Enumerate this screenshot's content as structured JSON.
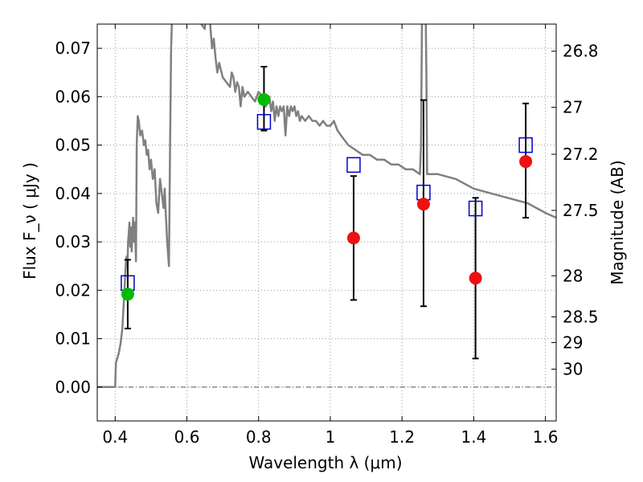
{
  "chart_data": {
    "type": "scatter",
    "xlabel": "Wavelength  λ (μm)",
    "ylabel": "Flux  F_ν  ( μJy )",
    "ylabel_right": "Magnitude (AB)",
    "xlim": [
      0.35,
      1.63
    ],
    "ylim": [
      -0.007,
      0.075
    ],
    "x_ticks": [
      0.4,
      0.6,
      0.8,
      1.0,
      1.2,
      1.4,
      1.6
    ],
    "x_tick_labels": [
      "0.4",
      "0.6",
      "0.8",
      "1",
      "1.2",
      "1.4",
      "1.6"
    ],
    "y_ticks": [
      0.0,
      0.01,
      0.02,
      0.03,
      0.04,
      0.05,
      0.06,
      0.07
    ],
    "y_tick_labels": [
      "0.00",
      "0.01",
      "0.02",
      "0.03",
      "0.04",
      "0.05",
      "0.06",
      "0.07"
    ],
    "right_ticks": [
      {
        "label": "26.8",
        "flux": 0.0694
      },
      {
        "label": "27",
        "flux": 0.0578
      },
      {
        "label": "27.2",
        "flux": 0.0481
      },
      {
        "label": "27.5",
        "flux": 0.0365
      },
      {
        "label": "28",
        "flux": 0.023
      },
      {
        "label": "28.5",
        "flux": 0.0145
      },
      {
        "label": "29",
        "flux": 0.0092
      },
      {
        "label": "30",
        "flux": 0.0037
      }
    ],
    "grid": true,
    "series": [
      {
        "type": "line",
        "color": "#808080",
        "x": [
          0.35,
          0.4,
          0.402,
          0.41,
          0.415,
          0.42,
          0.425,
          0.43,
          0.432,
          0.434,
          0.436,
          0.438,
          0.44,
          0.442,
          0.444,
          0.446,
          0.448,
          0.45,
          0.452,
          0.455,
          0.458,
          0.46,
          0.463,
          0.466,
          0.47,
          0.475,
          0.48,
          0.484,
          0.488,
          0.492,
          0.496,
          0.5,
          0.505,
          0.51,
          0.515,
          0.52,
          0.525,
          0.53,
          0.535,
          0.538,
          0.541,
          0.545,
          0.55,
          0.553,
          0.556,
          0.56,
          0.565,
          0.58,
          0.6,
          0.62,
          0.64,
          0.65,
          0.655,
          0.66,
          0.665,
          0.67,
          0.675,
          0.68,
          0.685,
          0.69,
          0.7,
          0.71,
          0.72,
          0.725,
          0.73,
          0.735,
          0.74,
          0.745,
          0.75,
          0.755,
          0.76,
          0.77,
          0.78,
          0.79,
          0.8,
          0.81,
          0.82,
          0.83,
          0.835,
          0.84,
          0.845,
          0.85,
          0.855,
          0.86,
          0.865,
          0.87,
          0.875,
          0.88,
          0.885,
          0.89,
          0.895,
          0.9,
          0.905,
          0.91,
          0.915,
          0.92,
          0.93,
          0.94,
          0.95,
          0.96,
          0.97,
          0.98,
          0.99,
          1.0,
          1.01,
          1.02,
          1.03,
          1.04,
          1.05,
          1.07,
          1.09,
          1.11,
          1.13,
          1.15,
          1.17,
          1.19,
          1.21,
          1.23,
          1.25,
          1.253,
          1.256,
          1.26,
          1.264,
          1.268,
          1.27,
          1.3,
          1.35,
          1.4,
          1.45,
          1.5,
          1.55,
          1.6,
          1.63
        ],
        "y": [
          0.0,
          0.0,
          0.005,
          0.007,
          0.009,
          0.012,
          0.019,
          0.026,
          0.027,
          0.025,
          0.03,
          0.032,
          0.034,
          0.029,
          0.033,
          0.028,
          0.031,
          0.035,
          0.03,
          0.034,
          0.026,
          0.05,
          0.056,
          0.055,
          0.052,
          0.053,
          0.05,
          0.051,
          0.048,
          0.049,
          0.045,
          0.047,
          0.043,
          0.045,
          0.038,
          0.036,
          0.043,
          0.04,
          0.037,
          0.041,
          0.036,
          0.03,
          0.025,
          0.05,
          0.07,
          0.08,
          0.09,
          0.095,
          0.085,
          0.078,
          0.075,
          0.074,
          0.079,
          0.078,
          0.075,
          0.07,
          0.072,
          0.068,
          0.065,
          0.067,
          0.064,
          0.063,
          0.062,
          0.065,
          0.064,
          0.061,
          0.063,
          0.062,
          0.058,
          0.062,
          0.06,
          0.061,
          0.06,
          0.059,
          0.061,
          0.06,
          0.058,
          0.06,
          0.057,
          0.059,
          0.055,
          0.058,
          0.056,
          0.058,
          0.057,
          0.058,
          0.052,
          0.058,
          0.056,
          0.058,
          0.057,
          0.058,
          0.056,
          0.057,
          0.055,
          0.056,
          0.055,
          0.056,
          0.055,
          0.055,
          0.054,
          0.055,
          0.054,
          0.054,
          0.055,
          0.053,
          0.052,
          0.051,
          0.05,
          0.049,
          0.048,
          0.048,
          0.047,
          0.047,
          0.046,
          0.046,
          0.045,
          0.045,
          0.044,
          0.05,
          0.08,
          0.1,
          0.09,
          0.065,
          0.044,
          0.044,
          0.043,
          0.041,
          0.04,
          0.039,
          0.038,
          0.036,
          0.035
        ]
      },
      {
        "type": "squares",
        "color": "#0000cc",
        "x": [
          0.435,
          0.815,
          1.065,
          1.26,
          1.405,
          1.545
        ],
        "y": [
          0.0215,
          0.0548,
          0.0459,
          0.0402,
          0.0369,
          0.05
        ]
      },
      {
        "type": "errorbar-points",
        "color": "#00bb00",
        "x": [
          0.435,
          0.815
        ],
        "y": [
          0.0192,
          0.0594
        ],
        "yerr_low": [
          0.0071,
          0.0064
        ],
        "yerr_high": [
          0.0071,
          0.0068
        ]
      },
      {
        "type": "errorbar-points",
        "color": "#ee1111",
        "x": [
          1.065,
          1.26,
          1.405,
          1.545
        ],
        "y": [
          0.0308,
          0.0378,
          0.0225,
          0.0466
        ],
        "yerr_low": [
          0.0128,
          0.0211,
          0.0166,
          0.0116
        ],
        "yerr_high": [
          0.0128,
          0.0215,
          0.0166,
          0.012
        ]
      }
    ]
  }
}
